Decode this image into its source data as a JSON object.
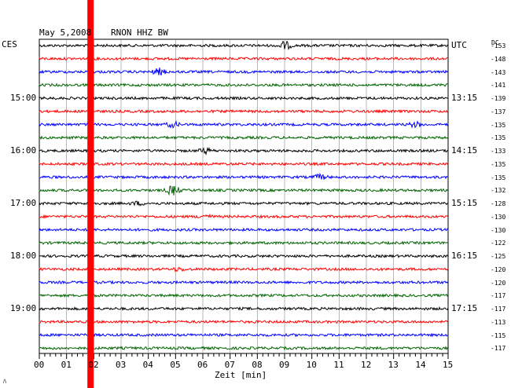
{
  "header": {
    "date": "May 5,2008",
    "station": "RNON HHZ BW",
    "left_tz": "CES",
    "right_tz": "UTC",
    "dc_label": "DC"
  },
  "colors": {
    "black": "#000000",
    "red": "#ff0000",
    "blue": "#0000ff",
    "green": "#006400",
    "marker": "#ff0000",
    "grid": "#000000"
  },
  "chart_data": {
    "type": "line",
    "title": "May 5,2008   RNON HHZ BW",
    "xlabel": "Zeit [min]",
    "x_ticks": [
      "00",
      "01",
      "02",
      "03",
      "04",
      "05",
      "06",
      "07",
      "08",
      "09",
      "10",
      "11",
      "12",
      "13",
      "14",
      "15"
    ],
    "xlim": [
      0,
      15
    ],
    "left_time_labels": [
      {
        "row": 4,
        "label": "15:00"
      },
      {
        "row": 8,
        "label": "16:00"
      },
      {
        "row": 12,
        "label": "17:00"
      },
      {
        "row": 16,
        "label": "18:00"
      },
      {
        "row": 20,
        "label": "19:00"
      }
    ],
    "right_time_labels": [
      {
        "row": 0,
        "label": "UTC"
      },
      {
        "row": 4,
        "label": "13:15"
      },
      {
        "row": 8,
        "label": "14:15"
      },
      {
        "row": 12,
        "label": "15:15"
      },
      {
        "row": 16,
        "label": "16:15"
      },
      {
        "row": 20,
        "label": "17:15"
      }
    ],
    "dc_offsets": [
      "-153",
      "-148",
      "-143",
      "-141",
      "-139",
      "-137",
      "-135",
      "-135",
      "-133",
      "-135",
      "-135",
      "-132",
      "-128",
      "-130",
      "-130",
      "-122",
      "-125",
      "-120",
      "-120",
      "-117",
      "-117",
      "-113",
      "-115",
      "-117"
    ],
    "trace_colors": [
      "black",
      "red",
      "blue",
      "green"
    ],
    "marker_minute": 1.88,
    "events": [
      {
        "row": 0,
        "minute": 9.0,
        "amplitude": 5
      },
      {
        "row": 2,
        "minute": 4.4,
        "amplitude": 4
      },
      {
        "row": 6,
        "minute": 4.9,
        "amplitude": 3
      },
      {
        "row": 6,
        "minute": 13.8,
        "amplitude": 3
      },
      {
        "row": 8,
        "minute": 6.1,
        "amplitude": 3
      },
      {
        "row": 10,
        "minute": 10.3,
        "amplitude": 3
      },
      {
        "row": 11,
        "minute": 4.9,
        "amplitude": 6
      },
      {
        "row": 12,
        "minute": 3.6,
        "amplitude": 2
      },
      {
        "row": 13,
        "minute": 6.1,
        "amplitude": 2
      },
      {
        "row": 17,
        "minute": 5.1,
        "amplitude": 2
      }
    ]
  },
  "footer_mark": "ﾊ"
}
